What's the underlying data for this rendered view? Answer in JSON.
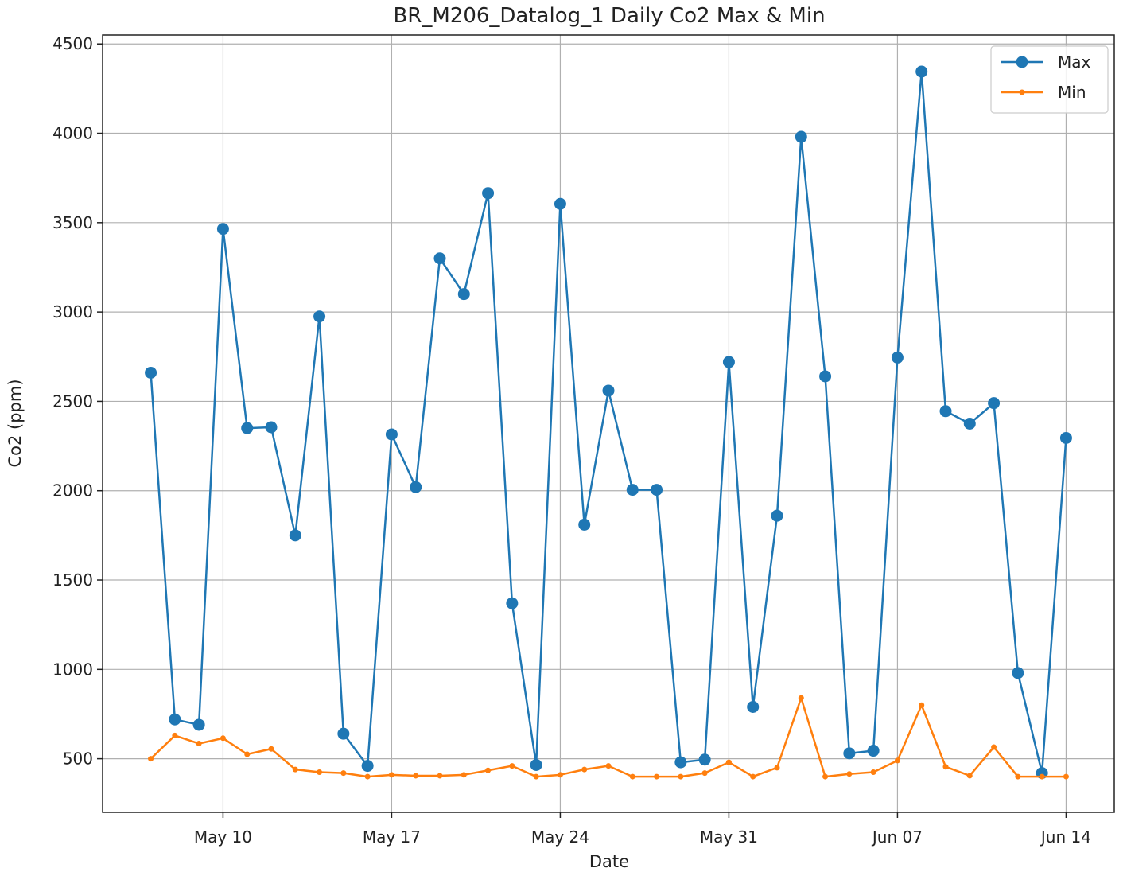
{
  "chart_data": {
    "type": "line",
    "title": "BR_M206_Datalog_1 Daily Co2 Max & Min",
    "xlabel": "Date",
    "ylabel": "Co2 (ppm)",
    "x": [
      "2020-05-07",
      "2020-05-08",
      "2020-05-09",
      "2020-05-10",
      "2020-05-11",
      "2020-05-12",
      "2020-05-13",
      "2020-05-14",
      "2020-05-15",
      "2020-05-16",
      "2020-05-17",
      "2020-05-18",
      "2020-05-19",
      "2020-05-20",
      "2020-05-21",
      "2020-05-22",
      "2020-05-23",
      "2020-05-24",
      "2020-05-25",
      "2020-05-26",
      "2020-05-27",
      "2020-05-28",
      "2020-05-29",
      "2020-05-30",
      "2020-05-31",
      "2020-06-01",
      "2020-06-02",
      "2020-06-03",
      "2020-06-04",
      "2020-06-05",
      "2020-06-06",
      "2020-06-07",
      "2020-06-08",
      "2020-06-09",
      "2020-06-10",
      "2020-06-11",
      "2020-06-12",
      "2020-06-13",
      "2020-06-14"
    ],
    "series": [
      {
        "name": "Max",
        "color": "#1f77b4",
        "marker": "circle",
        "values": [
          2660,
          720,
          690,
          3465,
          2350,
          2355,
          1750,
          2975,
          640,
          460,
          2315,
          2020,
          3300,
          3100,
          3665,
          1370,
          465,
          3605,
          1810,
          2560,
          2005,
          2005,
          480,
          495,
          2720,
          790,
          1860,
          3980,
          2640,
          530,
          545,
          2745,
          4345,
          2445,
          2375,
          2490,
          980,
          420,
          2295
        ]
      },
      {
        "name": "Min",
        "color": "#ff7f0e",
        "marker": "point",
        "values": [
          500,
          630,
          585,
          615,
          525,
          555,
          440,
          425,
          420,
          400,
          410,
          405,
          405,
          410,
          435,
          460,
          400,
          410,
          440,
          460,
          400,
          400,
          400,
          420,
          480,
          400,
          450,
          840,
          400,
          415,
          425,
          490,
          800,
          455,
          405,
          565,
          400,
          400,
          400
        ]
      }
    ],
    "xticks": [
      {
        "date": "2020-05-10",
        "label": "May 10"
      },
      {
        "date": "2020-05-17",
        "label": "May 17"
      },
      {
        "date": "2020-05-24",
        "label": "May 24"
      },
      {
        "date": "2020-05-31",
        "label": "May 31"
      },
      {
        "date": "2020-06-07",
        "label": "Jun 07"
      },
      {
        "date": "2020-06-14",
        "label": "Jun 14"
      }
    ],
    "yticks": [
      500,
      1000,
      1500,
      2000,
      2500,
      3000,
      3500,
      4000,
      4500
    ],
    "xlim": [
      "2020-05-05",
      "2020-06-16"
    ],
    "ylim": [
      200,
      4500
    ],
    "grid": true,
    "legend": {
      "position": "top-right"
    }
  }
}
